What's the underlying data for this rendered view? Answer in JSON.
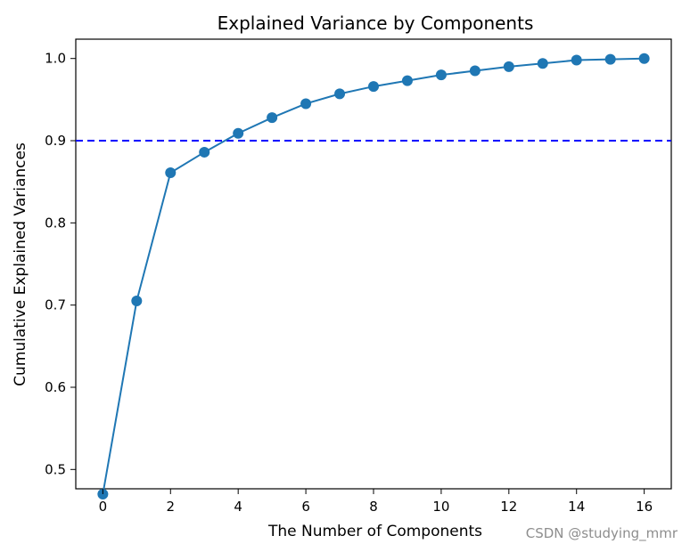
{
  "chart_data": {
    "type": "line",
    "title": "Explained Variance by Components",
    "xlabel": "The Number of Components",
    "ylabel": "Cumulative Explained Variances",
    "x": [
      0,
      1,
      2,
      3,
      4,
      5,
      6,
      7,
      8,
      9,
      10,
      11,
      12,
      13,
      14,
      15,
      16
    ],
    "series": [
      {
        "values": [
          0.47,
          0.705,
          0.861,
          0.886,
          0.909,
          0.928,
          0.945,
          0.957,
          0.966,
          0.973,
          0.98,
          0.985,
          0.99,
          0.994,
          0.998,
          0.999,
          1.0
        ],
        "color": "#1f77b4",
        "marker": "circle"
      }
    ],
    "reference_line": {
      "y": 0.9,
      "style": "dashed",
      "color": "#0000ff"
    },
    "xlim": [
      -0.8,
      16.8
    ],
    "ylim": [
      0.4765,
      1.0235
    ],
    "xticks": [
      0,
      2,
      4,
      6,
      8,
      10,
      12,
      14,
      16
    ],
    "yticks": [
      0.5,
      0.6,
      0.7,
      0.8,
      0.9,
      1.0
    ],
    "yticklabels": [
      "0.5",
      "0.6",
      "0.7",
      "0.8",
      "0.9",
      "1.0"
    ],
    "grid": false
  },
  "watermark": "CSDN @studying_mmr"
}
